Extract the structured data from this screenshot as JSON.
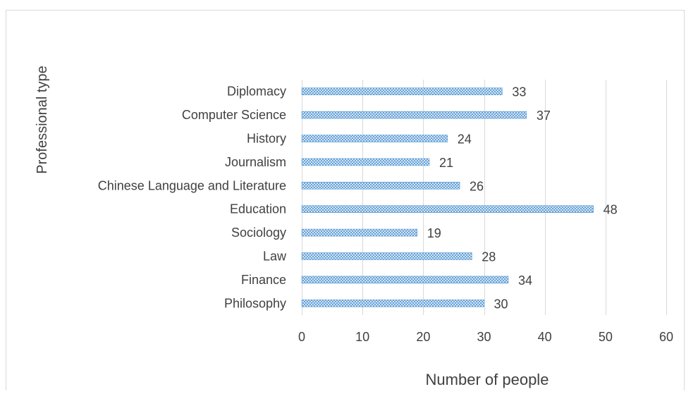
{
  "chart_data": {
    "type": "bar",
    "orientation": "horizontal",
    "title": "",
    "xlabel": "Number of people",
    "ylabel": "Professional type",
    "xlim": [
      0,
      60
    ],
    "x_ticks": [
      0,
      10,
      20,
      30,
      40,
      50,
      60
    ],
    "grid": "vertical",
    "data_labels": true,
    "bar_color": "#5b9bd5",
    "bar_pattern": "diagonal-cross",
    "categories": [
      "Philosophy",
      "Finance",
      "Law",
      "Sociology",
      "Education",
      "Chinese Language and Literature",
      "Journalism",
      "History",
      "Computer Science",
      "Diplomacy"
    ],
    "values": [
      30,
      34,
      28,
      19,
      48,
      26,
      21,
      24,
      37,
      33
    ]
  }
}
